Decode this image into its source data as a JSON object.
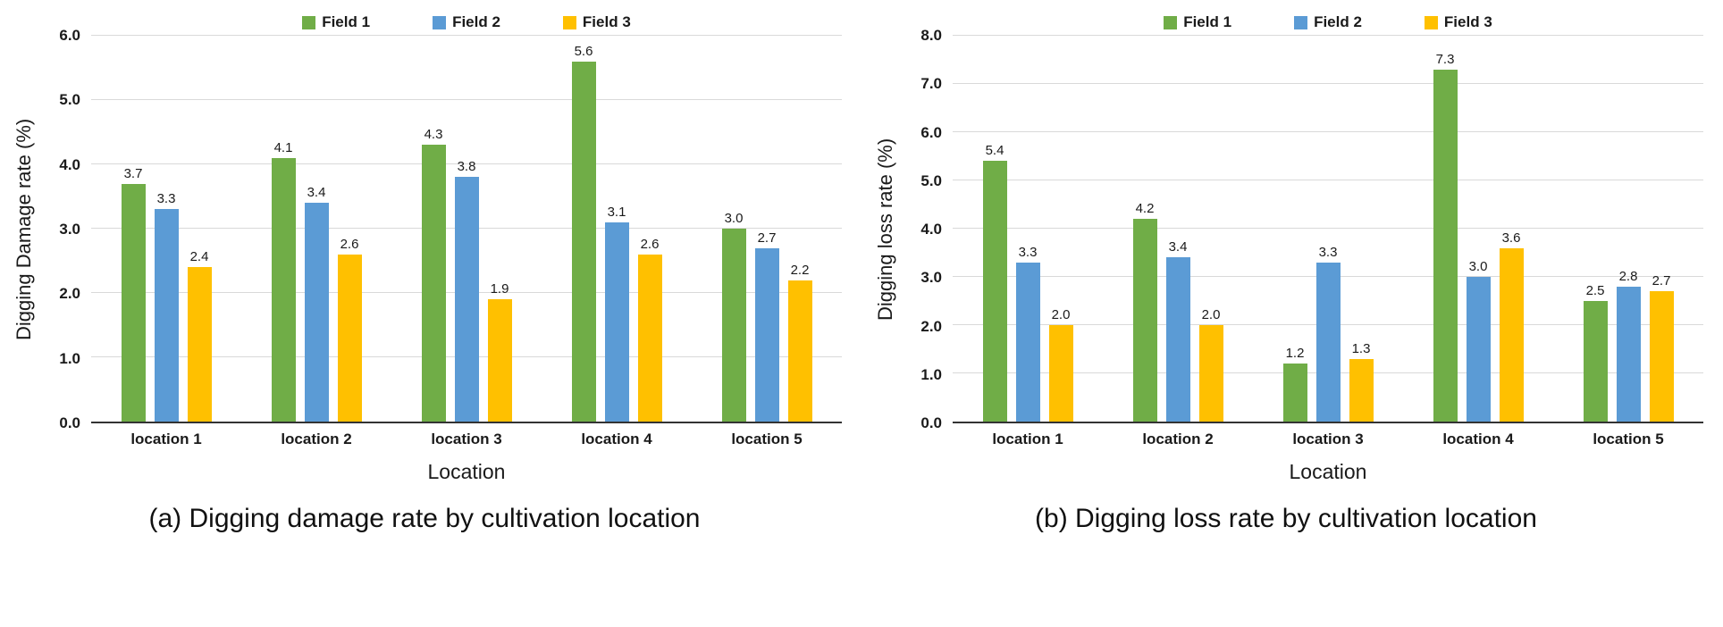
{
  "colors": {
    "field1": "#70AD47",
    "field2": "#5B9BD5",
    "field3": "#FFC000",
    "gridline": "#D9D9D9",
    "axis": "#333333",
    "text": "#1A1A1A"
  },
  "chart_data": [
    {
      "type": "bar",
      "caption": "(a) Digging damage rate by cultivation location",
      "ylabel": "Digging Damage rate (%)",
      "xlabel": "Location",
      "ylim": [
        0.0,
        6.0
      ],
      "ytick_step": 1.0,
      "grid": true,
      "legend_position": "top",
      "categories": [
        "location 1",
        "location 2",
        "location 3",
        "location 4",
        "location 5"
      ],
      "series": [
        {
          "name": "Field 1",
          "color": "#70AD47",
          "values": [
            3.7,
            4.1,
            4.3,
            5.6,
            3.0
          ]
        },
        {
          "name": "Field 2",
          "color": "#5B9BD5",
          "values": [
            3.3,
            3.4,
            3.8,
            3.1,
            2.7
          ]
        },
        {
          "name": "Field 3",
          "color": "#FFC000",
          "values": [
            2.4,
            2.6,
            1.9,
            2.6,
            2.2
          ]
        }
      ]
    },
    {
      "type": "bar",
      "caption": "(b) Digging loss rate by cultivation location",
      "ylabel": "Digging loss rate (%)",
      "xlabel": "Location",
      "ylim": [
        0.0,
        8.0
      ],
      "ytick_step": 1.0,
      "grid": true,
      "legend_position": "top",
      "categories": [
        "location 1",
        "location 2",
        "location 3",
        "location 4",
        "location 5"
      ],
      "series": [
        {
          "name": "Field 1",
          "color": "#70AD47",
          "values": [
            5.4,
            4.2,
            1.2,
            7.3,
            2.5
          ]
        },
        {
          "name": "Field 2",
          "color": "#5B9BD5",
          "values": [
            3.3,
            3.4,
            3.3,
            3.0,
            2.8
          ]
        },
        {
          "name": "Field 3",
          "color": "#FFC000",
          "values": [
            2.0,
            2.0,
            1.3,
            3.6,
            2.7
          ]
        }
      ]
    }
  ]
}
